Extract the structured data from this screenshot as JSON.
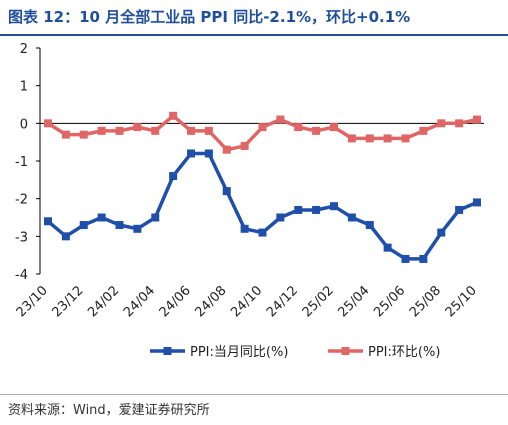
{
  "header": {
    "title": "图表 12：10 月全部工业品 PPI 同比-2.1%，环比+0.1%"
  },
  "footer": {
    "source": "资料来源：Wind，爱建证券研究所"
  },
  "colors": {
    "title": "#1f4e9a",
    "series_yoy": "#1f4fa8",
    "series_mom": "#e06666"
  },
  "chart_data": {
    "type": "line",
    "x": [
      "23/10",
      "23/11",
      "23/12",
      "24/01",
      "24/02",
      "24/03",
      "24/04",
      "24/05",
      "24/06",
      "24/07",
      "24/08",
      "24/09",
      "24/10",
      "24/11",
      "24/12",
      "25/01",
      "25/02",
      "25/03",
      "25/04",
      "25/05",
      "25/06",
      "25/07",
      "25/08",
      "25/09",
      "25/10"
    ],
    "xtick_labels": [
      "23/10",
      "23/12",
      "24/02",
      "24/04",
      "24/06",
      "24/08",
      "24/10",
      "24/12",
      "25/02",
      "25/04",
      "25/06",
      "25/08",
      "25/10"
    ],
    "ylim": [
      -4,
      2
    ],
    "yticks": [
      "2",
      "1",
      "0",
      "-1",
      "-2",
      "-3",
      "-4"
    ],
    "grid": false,
    "legend_position": "bottom",
    "series": [
      {
        "name": "PPI:当月同比(%)",
        "color": "#1f4fa8",
        "marker": "square",
        "values": [
          -2.6,
          -3.0,
          -2.7,
          -2.5,
          -2.7,
          -2.8,
          -2.5,
          -1.4,
          -0.8,
          -0.8,
          -1.8,
          -2.8,
          -2.9,
          -2.5,
          -2.3,
          -2.3,
          -2.2,
          -2.5,
          -2.7,
          -3.3,
          -3.6,
          -3.6,
          -2.9,
          -2.3,
          -2.1
        ]
      },
      {
        "name": "PPI:环比(%)",
        "color": "#e06666",
        "marker": "square",
        "values": [
          0.0,
          -0.3,
          -0.3,
          -0.2,
          -0.2,
          -0.1,
          -0.2,
          0.2,
          -0.2,
          -0.2,
          -0.7,
          -0.6,
          -0.1,
          0.1,
          -0.1,
          -0.2,
          -0.1,
          -0.4,
          -0.4,
          -0.4,
          -0.4,
          -0.2,
          0.0,
          0.0,
          0.1
        ]
      }
    ]
  }
}
